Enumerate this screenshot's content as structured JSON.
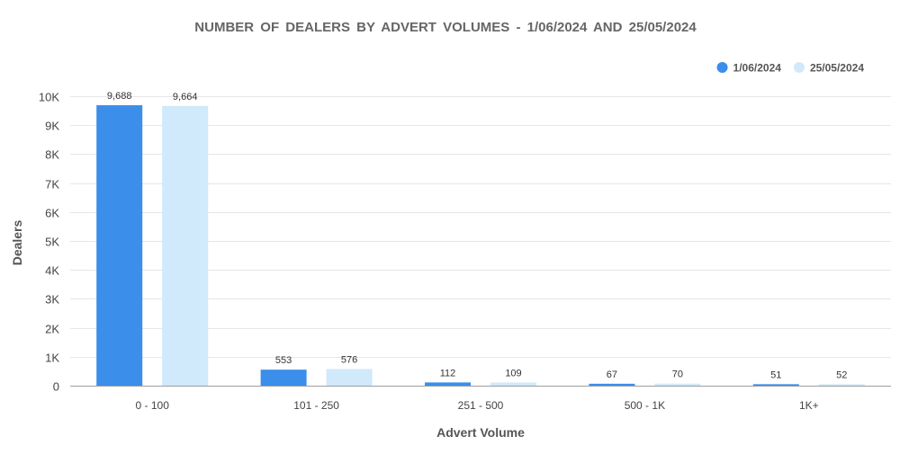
{
  "chart_data": {
    "type": "bar",
    "title": "NUMBER OF DEALERS BY ADVERT VOLUMES - 1/06/2024 AND 25/05/2024",
    "xlabel": "Advert Volume",
    "ylabel": "Dealers",
    "categories": [
      "0 - 100",
      "101 - 250",
      "251 - 500",
      "500 - 1K",
      "1K+"
    ],
    "series": [
      {
        "name": "1/06/2024",
        "color": "#3b8eea",
        "values": [
          9688,
          553,
          112,
          67,
          51
        ],
        "labels": [
          "9,688",
          "553",
          "112",
          "67",
          "51"
        ]
      },
      {
        "name": "25/05/2024",
        "color": "#d0e9fb",
        "values": [
          9664,
          576,
          109,
          70,
          52
        ],
        "labels": [
          "9,664",
          "576",
          "109",
          "70",
          "52"
        ]
      }
    ],
    "ylim": [
      0,
      10000
    ],
    "yticks": [
      0,
      1000,
      2000,
      3000,
      4000,
      5000,
      6000,
      7000,
      8000,
      9000,
      10000
    ],
    "ytick_labels": [
      "0",
      "1K",
      "2K",
      "3K",
      "4K",
      "5K",
      "6K",
      "7K",
      "8K",
      "9K",
      "10K"
    ],
    "grid": true,
    "legend_position": "top-right"
  }
}
